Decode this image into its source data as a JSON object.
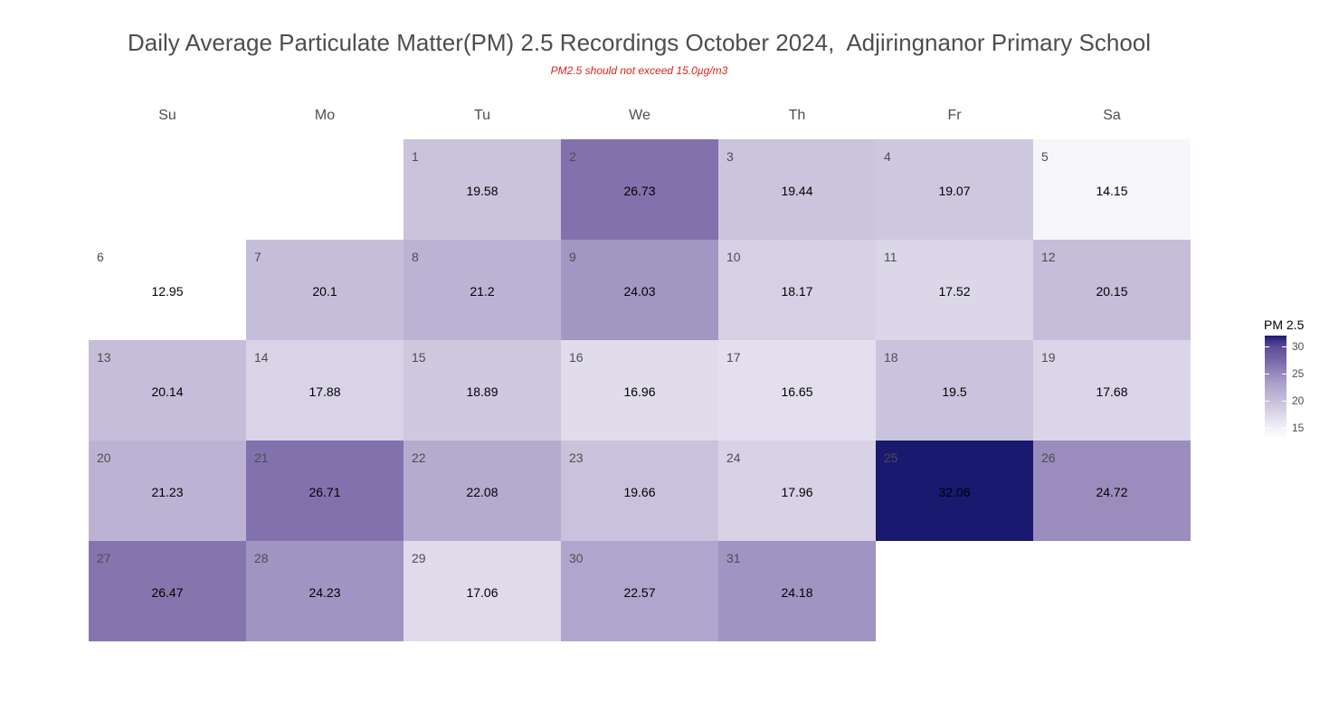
{
  "chart_data": {
    "type": "heatmap",
    "title": "Daily Average Particulate Matter(PM) 2.5 Recordings October 2024,  Adjiringnanor Primary School",
    "subtitle": "PM2.5 should not exceed 15.0µg/m3",
    "weekdays": [
      "Su",
      "Mo",
      "Tu",
      "We",
      "Th",
      "Fr",
      "Sa"
    ],
    "first_weekday_index": 2,
    "days": [
      {
        "day": "1",
        "value": 19.58
      },
      {
        "day": "2",
        "value": 26.73
      },
      {
        "day": "3",
        "value": 19.44
      },
      {
        "day": "4",
        "value": 19.07
      },
      {
        "day": "5",
        "value": 14.15
      },
      {
        "day": "6",
        "value": 12.95
      },
      {
        "day": "7",
        "value": 20.1
      },
      {
        "day": "8",
        "value": 21.2
      },
      {
        "day": "9",
        "value": 24.03
      },
      {
        "day": "10",
        "value": 18.17
      },
      {
        "day": "11",
        "value": 17.52
      },
      {
        "day": "12",
        "value": 20.15
      },
      {
        "day": "13",
        "value": 20.14
      },
      {
        "day": "14",
        "value": 17.88
      },
      {
        "day": "15",
        "value": 18.89
      },
      {
        "day": "16",
        "value": 16.96
      },
      {
        "day": "17",
        "value": 16.65
      },
      {
        "day": "18",
        "value": 19.5
      },
      {
        "day": "19",
        "value": 17.68
      },
      {
        "day": "20",
        "value": 21.23
      },
      {
        "day": "21",
        "value": 26.71
      },
      {
        "day": "22",
        "value": 22.08
      },
      {
        "day": "23",
        "value": 19.66
      },
      {
        "day": "24",
        "value": 17.96
      },
      {
        "day": "25",
        "value": 32.06
      },
      {
        "day": "26",
        "value": 24.72
      },
      {
        "day": "27",
        "value": 26.47
      },
      {
        "day": "28",
        "value": 24.23
      },
      {
        "day": "29",
        "value": 17.06
      },
      {
        "day": "30",
        "value": 22.57
      },
      {
        "day": "31",
        "value": 24.18
      }
    ],
    "legend": {
      "title": "PM 2.5",
      "ticks": [
        15,
        20,
        25,
        30
      ],
      "range": [
        12.95,
        32.06
      ],
      "color_low": "#ffffff",
      "color_high": "#191970"
    }
  }
}
